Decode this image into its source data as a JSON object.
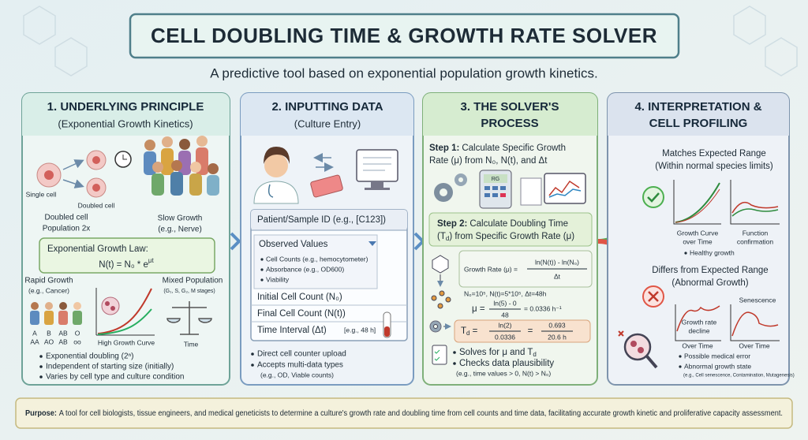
{
  "header": {
    "title": "CELL DOUBLING TIME & GROWTH RATE SOLVER",
    "subtitle": "A predictive tool based on exponential population growth kinetics."
  },
  "panels": [
    {
      "title": [
        "1. UNDERLYING PRINCIPLE"
      ],
      "subtitle": "(Exponential Growth Kinetics)",
      "single_cell": "Single cell",
      "doubled_cell": "Doubled cell",
      "population": [
        "Doubled cell",
        "Population 2x"
      ],
      "slow_growth": [
        "Slow Growth",
        "(e.g., Nerve)"
      ],
      "law_title": "Exponential Growth Law:",
      "law": {
        "base": "N(t) = N₀ * e",
        "exponent": "μt"
      },
      "rapid_growth": [
        "Rapid Growth",
        "(e.g., Cancer)"
      ],
      "mixed_population": [
        "Mixed Population",
        "(G₁, S, G₂, M stages)"
      ],
      "curve_label": "High Growth Curve",
      "time_label": "Time",
      "blood_types": [
        [
          "A",
          "AA"
        ],
        [
          "B",
          "AO"
        ],
        [
          "AB",
          "AB"
        ],
        [
          "O",
          "oo"
        ]
      ],
      "bullets": [
        "Exponential doubling (2ⁿ)",
        "Independent of starting size (initially)",
        "Varies by cell type and culture condition"
      ]
    },
    {
      "title": [
        "2. INPUTTING DATA"
      ],
      "subtitle": "(Culture Entry)",
      "form": {
        "sample_id": "Patient/Sample ID (e.g., [C123])",
        "observed": "Observed Values",
        "observed_items": [
          "Cell Counts (e.g., hemocytometer)",
          "Absorbance (e.g., OD600)",
          "Viability"
        ],
        "initial": "Initial Cell Count (N₀)",
        "final": "Final Cell Count (N(t))",
        "interval": "Time Interval (Δt)",
        "interval_hint": "[e.g., 48 h]"
      },
      "bullets": [
        "Direct cell counter upload",
        "Accepts multi-data types"
      ],
      "bullet_note": "(e.g., OD, Viable counts)"
    },
    {
      "title": [
        "3. THE SOLVER'S",
        "PROCESS"
      ],
      "step1": {
        "label": "Step 1:",
        "lines": [
          "Calculate Specific Growth",
          "Rate (μ) from N₀, N(t), and Δt"
        ]
      },
      "calculator": "RG",
      "step2": {
        "label": "Step 2:",
        "line1": "Calculate Doubling Time",
        "line2": [
          "(T",
          "d",
          ") from Specific Growth Rate (μ)"
        ]
      },
      "growth_rate": {
        "lhs": "Growth Rate (μ) =",
        "numerator": "ln(N(t)) - ln(N₀)",
        "denominator": "Δt"
      },
      "example": "N₀=10⁵, N(t)=5*10⁵, Δt=48h",
      "mu": {
        "lhs": "μ =",
        "numerator": "ln(5) - 0",
        "denominator": "48",
        "result": "= 0.0336 h⁻¹"
      },
      "td": {
        "lhs": [
          "T",
          "d",
          " ="
        ],
        "numerator": "ln(2)",
        "denominator": "0.0336",
        "equals": "=",
        "numerator2": "0.693",
        "denominator2": "20.6 h"
      },
      "solves": [
        "Solves for μ and T",
        "d"
      ],
      "checks": "Checks data plausibility",
      "note": "(e.g., time values > 0, N(t) > N₀)"
    },
    {
      "title": [
        "4. INTERPRETATION &",
        "CELL PROFILING"
      ],
      "matches": [
        "Matches Expected Range",
        "(Within normal species limits)"
      ],
      "chart_labels": [
        [
          "Growth Curve",
          "over Time"
        ],
        [
          "Function",
          "confirmation"
        ]
      ],
      "healthy": "Healthy growth",
      "differs": [
        "Differs from Expected Range",
        "(Abnormal Growth)"
      ],
      "decline": [
        "Growth rate",
        "decline"
      ],
      "senescence": "Senescence",
      "over_time": [
        "Over Time",
        "Over Time"
      ],
      "bullets": [
        "Possible medical error",
        "Abnormal growth state"
      ],
      "note": "(e.g., Cell senescence, Contamination, Mutagenesis)"
    }
  ],
  "footer": {
    "label": "Purpose:",
    "text": "A tool for cell biologists, tissue engineers, and medical geneticists to determine a culture's growth rate and doubling time from cell counts and time data, facilitating accurate growth kinetic and proliferative capacity assessment."
  }
}
